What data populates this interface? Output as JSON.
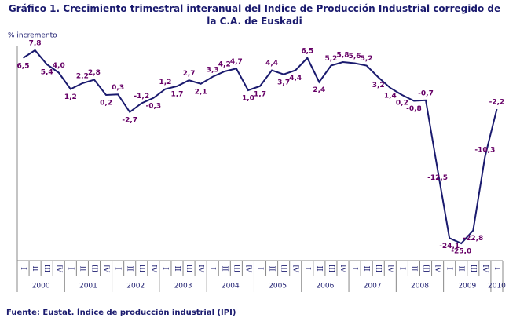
{
  "chart_data": {
    "type": "line",
    "title": "Gráfico 1. Crecimiento trimestral interanual del Indice de Producción Industrial corregido de la C.A. de Euskadi",
    "y_label": "% incremento",
    "source": "Fuente: Eustat. Índice de producción industrial (IPI)",
    "categories": [
      "I",
      "II",
      "III",
      "IV",
      "I",
      "II",
      "III",
      "IV",
      "I",
      "II",
      "III",
      "IV",
      "I",
      "II",
      "III",
      "IV",
      "I",
      "II",
      "III",
      "IV",
      "I",
      "II",
      "III",
      "IV",
      "I",
      "II",
      "III",
      "IV",
      "I",
      "II",
      "III",
      "IV",
      "I",
      "II",
      "III",
      "IV",
      "I",
      "II",
      "III",
      "IV",
      "I"
    ],
    "years": [
      "2000",
      "2001",
      "2002",
      "2003",
      "2004",
      "2005",
      "2006",
      "2007",
      "2008",
      "2009",
      "2010"
    ],
    "series": [
      {
        "color": "#1a1a6e",
        "values": [
          6.5,
          7.8,
          5.4,
          4.0,
          1.2,
          2.2,
          2.8,
          0.2,
          0.3,
          -2.7,
          -1.2,
          -0.3,
          1.2,
          1.7,
          2.7,
          2.1,
          3.3,
          4.2,
          4.7,
          1.0,
          1.7,
          4.4,
          3.7,
          4.4,
          6.5,
          2.4,
          5.2,
          5.8,
          5.6,
          5.2,
          3.2,
          1.4,
          0.2,
          -0.8,
          -0.7,
          -12.5,
          -24.1,
          -25.0,
          -22.8,
          -10.3,
          -2.2
        ],
        "value_labels": [
          "6,5",
          "7,8",
          "5,4",
          "4,0",
          "1,2",
          "2,2",
          "2,8",
          "0,2",
          "0,3",
          "-2,7",
          "-1,2",
          "-0,3",
          "1,2",
          "1,7",
          "2,7",
          "2,1",
          "3,3",
          "4,2",
          "4,7",
          "1,0",
          "1,7",
          "4,4",
          "3,7",
          "4,4",
          "6,5",
          "2,4",
          "5,2",
          "5,8",
          "5,6",
          "5,2",
          "3,2",
          "1,4",
          "0,2",
          "-0,8",
          "-0,7",
          "-12,5",
          "-24,1",
          "-25,0",
          "-22,8",
          "-10,3",
          "-2,2"
        ],
        "label_color": "#660066"
      }
    ],
    "ylim": [
      -27,
      9
    ]
  }
}
